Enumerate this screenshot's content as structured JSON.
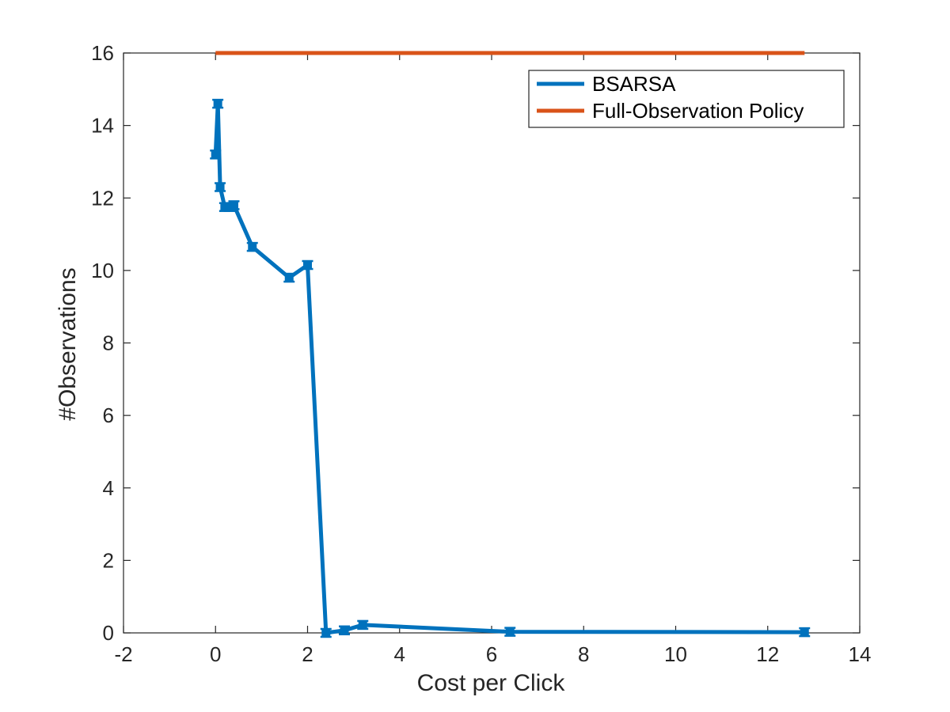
{
  "chart_data": {
    "type": "line",
    "title": "",
    "xlabel": "Cost per Click",
    "ylabel": "#Observations",
    "xlim": [
      -2,
      14
    ],
    "ylim": [
      0,
      16
    ],
    "xticks": [
      -2,
      0,
      2,
      4,
      6,
      8,
      10,
      12,
      14
    ],
    "yticks": [
      0,
      2,
      4,
      6,
      8,
      10,
      12,
      14,
      16
    ],
    "xtick_labels": [
      "-2",
      "0",
      "2",
      "4",
      "6",
      "8",
      "10",
      "12",
      "14"
    ],
    "ytick_labels": [
      "0",
      "2",
      "4",
      "6",
      "8",
      "10",
      "12",
      "14",
      "16"
    ],
    "grid": false,
    "legend_position": "top-right",
    "series": [
      {
        "name": "BSARSA",
        "color": "#0072BD",
        "marker": "square-errorbar",
        "x": [
          0.0,
          0.05,
          0.1,
          0.2,
          0.3,
          0.4,
          0.8,
          1.6,
          2.0,
          2.4,
          2.8,
          3.2,
          6.4,
          12.8
        ],
        "y": [
          13.2,
          14.6,
          12.3,
          11.75,
          11.75,
          11.8,
          10.65,
          9.8,
          10.15,
          0.0,
          0.07,
          0.22,
          0.03,
          0.02
        ]
      },
      {
        "name": "Full-Observation Policy",
        "color": "#D95319",
        "marker": "none",
        "x": [
          0.0,
          12.8
        ],
        "y": [
          16,
          16
        ]
      }
    ]
  }
}
